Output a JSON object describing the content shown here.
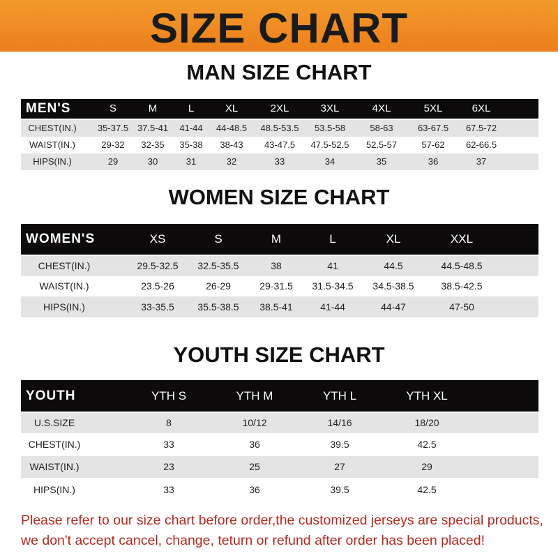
{
  "banner": {
    "title": "SIZE CHART",
    "color": "#ef8a22"
  },
  "men": {
    "title": "MAN SIZE CHART",
    "header": [
      "MEN'S",
      "S",
      "M",
      "L",
      "XL",
      "2XL",
      "3XL",
      "4XL",
      "5XL",
      "6XL"
    ],
    "rows": [
      [
        "CHEST(IN.)",
        "35-37.5",
        "37.5-41",
        "41-44",
        "44-48.5",
        "48.5-53.5",
        "53.5-58",
        "58-63",
        "63-67.5",
        "67.5-72"
      ],
      [
        "WAIST(IN.)",
        "29-32",
        "32-35",
        "35-38",
        "38-43",
        "43-47.5",
        "47.5-52.5",
        "52.5-57",
        "57-62",
        "62-66.5"
      ],
      [
        "HIPS(IN.)",
        "29",
        "30",
        "31",
        "32",
        "33",
        "34",
        "35",
        "36",
        "37"
      ]
    ]
  },
  "women": {
    "title": "WOMEN SIZE CHART",
    "header": [
      "WOMEN'S",
      "XS",
      "S",
      "M",
      "L",
      "XL",
      "XXL"
    ],
    "rows": [
      [
        "CHEST(IN.)",
        "29.5-32.5",
        "32.5-35.5",
        "38",
        "41",
        "44.5",
        "44.5-48.5"
      ],
      [
        "WAIST(IN.)",
        "23.5-26",
        "26-29",
        "29-31.5",
        "31.5-34.5",
        "34.5-38.5",
        "38.5-42.5"
      ],
      [
        "HIPS(IN.)",
        "33-35.5",
        "35.5-38.5",
        "38.5-41",
        "41-44",
        "44-47",
        "47-50"
      ]
    ]
  },
  "youth": {
    "title": "YOUTH SIZE CHART",
    "header": [
      "YOUTH",
      "YTH S",
      "YTH M",
      "YTH L",
      "YTH XL"
    ],
    "rows": [
      [
        "U.S.SIZE",
        "8",
        "10/12",
        "14/16",
        "18/20"
      ],
      [
        "CHEST(IN.)",
        "33",
        "36",
        "39.5",
        "42.5"
      ],
      [
        "WAIST(IN.)",
        "23",
        "25",
        "27",
        "29"
      ],
      [
        "HIPS(IN.)",
        "33",
        "36",
        "39.5",
        "42.5"
      ]
    ]
  },
  "footer": {
    "line1": "Please refer to our size chart before order,the customized jerseys are special products,",
    "line2": "we don't accept cancel, change, teturn or refund after order has been placed!",
    "color": "#b52a22"
  }
}
